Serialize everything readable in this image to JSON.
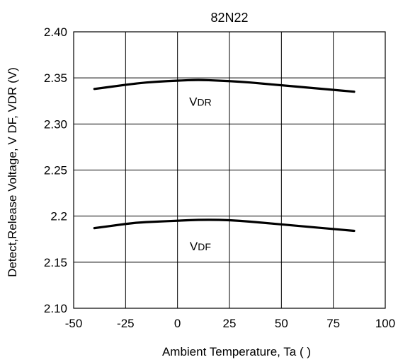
{
  "chart_data": {
    "type": "line",
    "title": "82N22",
    "xlabel": "Ambient Temperature, Ta (   )",
    "ylabel": "Detect,Release Voltage, V DF, VDR (V)",
    "xlim": [
      -50,
      100
    ],
    "ylim": [
      2.1,
      2.4
    ],
    "x_ticks": [
      -50,
      -25,
      0,
      25,
      50,
      75,
      100
    ],
    "x_tick_labels": [
      "-50",
      "-25",
      "0",
      "25",
      "50",
      "75",
      "100"
    ],
    "y_ticks": [
      2.1,
      2.15,
      2.2,
      2.25,
      2.3,
      2.35,
      2.4
    ],
    "y_tick_labels": [
      "2.10",
      "2.15",
      "2.2",
      "2.25",
      "2.30",
      "2.35",
      "2.40"
    ],
    "grid": true,
    "line_color": "#000000",
    "series": [
      {
        "name": "VDR",
        "label_main": "V",
        "label_sub": "DR",
        "label_anchor": {
          "x": 11,
          "y": 2.32
        },
        "x": [
          -40,
          -30,
          -20,
          -10,
          0,
          10,
          20,
          30,
          40,
          50,
          60,
          70,
          85
        ],
        "values": [
          2.338,
          2.341,
          2.344,
          2.346,
          2.347,
          2.348,
          2.347,
          2.346,
          2.344,
          2.342,
          2.34,
          2.338,
          2.335
        ]
      },
      {
        "name": "VDF",
        "label_main": "V",
        "label_sub": "DF",
        "label_anchor": {
          "x": 11,
          "y": 2.163
        },
        "x": [
          -40,
          -30,
          -20,
          -10,
          0,
          10,
          20,
          30,
          40,
          50,
          60,
          70,
          85
        ],
        "values": [
          2.187,
          2.19,
          2.193,
          2.194,
          2.195,
          2.196,
          2.196,
          2.195,
          2.193,
          2.191,
          2.189,
          2.187,
          2.184
        ]
      }
    ]
  }
}
